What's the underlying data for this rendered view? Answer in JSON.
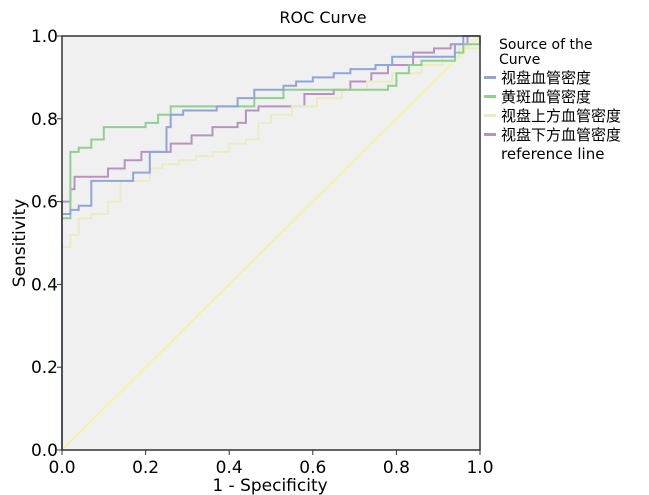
{
  "chart_data": {
    "type": "line",
    "title": "ROC Curve",
    "xlabel": "1 - Specificity",
    "ylabel": "Sensitivity",
    "xlim": [
      0,
      1
    ],
    "ylim": [
      0,
      1
    ],
    "xticks": [
      "0.0",
      "0.2",
      "0.4",
      "0.6",
      "0.8",
      "1.0"
    ],
    "yticks": [
      "0.0",
      "0.2",
      "0.4",
      "0.6",
      "0.8",
      "1.0"
    ],
    "grid": false,
    "background_color": "#f0f0f0",
    "legend": {
      "title": "Source of the Curve",
      "placement": "right"
    },
    "series": [
      {
        "name": "视盘血管密度",
        "color": "#8fa6d6",
        "points": [
          [
            0,
            0
          ],
          [
            0,
            0.57
          ],
          [
            0.02,
            0.57
          ],
          [
            0.02,
            0.58
          ],
          [
            0.04,
            0.58
          ],
          [
            0.04,
            0.59
          ],
          [
            0.07,
            0.59
          ],
          [
            0.07,
            0.65
          ],
          [
            0.17,
            0.65
          ],
          [
            0.17,
            0.67
          ],
          [
            0.21,
            0.67
          ],
          [
            0.21,
            0.72
          ],
          [
            0.25,
            0.72
          ],
          [
            0.25,
            0.78
          ],
          [
            0.26,
            0.78
          ],
          [
            0.26,
            0.81
          ],
          [
            0.29,
            0.81
          ],
          [
            0.29,
            0.82
          ],
          [
            0.37,
            0.82
          ],
          [
            0.37,
            0.83
          ],
          [
            0.42,
            0.83
          ],
          [
            0.42,
            0.85
          ],
          [
            0.46,
            0.85
          ],
          [
            0.46,
            0.87
          ],
          [
            0.53,
            0.87
          ],
          [
            0.53,
            0.88
          ],
          [
            0.56,
            0.88
          ],
          [
            0.56,
            0.89
          ],
          [
            0.6,
            0.89
          ],
          [
            0.6,
            0.9
          ],
          [
            0.65,
            0.9
          ],
          [
            0.65,
            0.91
          ],
          [
            0.69,
            0.91
          ],
          [
            0.69,
            0.92
          ],
          [
            0.75,
            0.92
          ],
          [
            0.75,
            0.93
          ],
          [
            0.79,
            0.93
          ],
          [
            0.79,
            0.95
          ],
          [
            0.94,
            0.95
          ],
          [
            0.94,
            0.98
          ],
          [
            0.96,
            0.98
          ],
          [
            0.96,
            1.0
          ],
          [
            1,
            1
          ]
        ]
      },
      {
        "name": "黄斑血管密度",
        "color": "#8fd08f",
        "points": [
          [
            0,
            0
          ],
          [
            0,
            0.56
          ],
          [
            0.02,
            0.56
          ],
          [
            0.02,
            0.72
          ],
          [
            0.04,
            0.72
          ],
          [
            0.04,
            0.73
          ],
          [
            0.07,
            0.73
          ],
          [
            0.07,
            0.75
          ],
          [
            0.1,
            0.75
          ],
          [
            0.1,
            0.78
          ],
          [
            0.2,
            0.78
          ],
          [
            0.2,
            0.79
          ],
          [
            0.23,
            0.79
          ],
          [
            0.23,
            0.81
          ],
          [
            0.26,
            0.81
          ],
          [
            0.26,
            0.83
          ],
          [
            0.46,
            0.83
          ],
          [
            0.46,
            0.85
          ],
          [
            0.53,
            0.85
          ],
          [
            0.53,
            0.87
          ],
          [
            0.78,
            0.87
          ],
          [
            0.78,
            0.88
          ],
          [
            0.8,
            0.88
          ],
          [
            0.8,
            0.91
          ],
          [
            0.83,
            0.91
          ],
          [
            0.83,
            0.93
          ],
          [
            0.86,
            0.93
          ],
          [
            0.86,
            0.94
          ],
          [
            0.94,
            0.94
          ],
          [
            0.94,
            0.96
          ],
          [
            0.96,
            0.96
          ],
          [
            0.96,
            0.98
          ],
          [
            1,
            0.98
          ],
          [
            1,
            1
          ]
        ]
      },
      {
        "name": "视盘上方血管密度",
        "color": "#ecebc4",
        "points": [
          [
            0,
            0
          ],
          [
            0,
            0.49
          ],
          [
            0.02,
            0.49
          ],
          [
            0.02,
            0.52
          ],
          [
            0.04,
            0.52
          ],
          [
            0.04,
            0.56
          ],
          [
            0.07,
            0.56
          ],
          [
            0.07,
            0.57
          ],
          [
            0.11,
            0.57
          ],
          [
            0.11,
            0.6
          ],
          [
            0.14,
            0.6
          ],
          [
            0.14,
            0.65
          ],
          [
            0.21,
            0.65
          ],
          [
            0.21,
            0.68
          ],
          [
            0.24,
            0.68
          ],
          [
            0.24,
            0.69
          ],
          [
            0.28,
            0.69
          ],
          [
            0.28,
            0.7
          ],
          [
            0.32,
            0.7
          ],
          [
            0.32,
            0.71
          ],
          [
            0.36,
            0.71
          ],
          [
            0.36,
            0.72
          ],
          [
            0.4,
            0.72
          ],
          [
            0.4,
            0.74
          ],
          [
            0.44,
            0.74
          ],
          [
            0.44,
            0.75
          ],
          [
            0.47,
            0.75
          ],
          [
            0.47,
            0.79
          ],
          [
            0.5,
            0.79
          ],
          [
            0.5,
            0.81
          ],
          [
            0.55,
            0.81
          ],
          [
            0.55,
            0.83
          ],
          [
            0.61,
            0.83
          ],
          [
            0.61,
            0.85
          ],
          [
            0.67,
            0.85
          ],
          [
            0.67,
            0.87
          ],
          [
            0.73,
            0.87
          ],
          [
            0.73,
            0.89
          ],
          [
            0.79,
            0.89
          ],
          [
            0.79,
            0.91
          ],
          [
            0.86,
            0.91
          ],
          [
            0.86,
            0.93
          ],
          [
            0.91,
            0.93
          ],
          [
            0.91,
            0.95
          ],
          [
            0.95,
            0.95
          ],
          [
            0.95,
            0.97
          ],
          [
            1,
            0.97
          ],
          [
            1,
            1
          ]
        ]
      },
      {
        "name": "视盘下方血管密度",
        "color": "#b993c0",
        "points": [
          [
            0,
            0
          ],
          [
            0,
            0.6
          ],
          [
            0.02,
            0.6
          ],
          [
            0.02,
            0.63
          ],
          [
            0.03,
            0.63
          ],
          [
            0.03,
            0.66
          ],
          [
            0.11,
            0.66
          ],
          [
            0.11,
            0.68
          ],
          [
            0.15,
            0.68
          ],
          [
            0.15,
            0.7
          ],
          [
            0.19,
            0.7
          ],
          [
            0.19,
            0.72
          ],
          [
            0.26,
            0.72
          ],
          [
            0.26,
            0.74
          ],
          [
            0.31,
            0.74
          ],
          [
            0.31,
            0.76
          ],
          [
            0.36,
            0.76
          ],
          [
            0.36,
            0.78
          ],
          [
            0.42,
            0.78
          ],
          [
            0.42,
            0.79
          ],
          [
            0.44,
            0.79
          ],
          [
            0.44,
            0.82
          ],
          [
            0.47,
            0.82
          ],
          [
            0.47,
            0.83
          ],
          [
            0.58,
            0.83
          ],
          [
            0.58,
            0.86
          ],
          [
            0.65,
            0.86
          ],
          [
            0.65,
            0.87
          ],
          [
            0.69,
            0.87
          ],
          [
            0.69,
            0.89
          ],
          [
            0.74,
            0.89
          ],
          [
            0.74,
            0.91
          ],
          [
            0.78,
            0.91
          ],
          [
            0.78,
            0.93
          ],
          [
            0.84,
            0.93
          ],
          [
            0.84,
            0.96
          ],
          [
            0.89,
            0.96
          ],
          [
            0.89,
            0.97
          ],
          [
            0.93,
            0.97
          ],
          [
            0.93,
            0.98
          ],
          [
            0.97,
            0.98
          ],
          [
            0.97,
            1.0
          ],
          [
            1,
            1
          ]
        ]
      },
      {
        "name": "reference line",
        "color": "#f3f3a8",
        "points": [
          [
            0,
            0
          ],
          [
            1,
            1
          ]
        ]
      }
    ]
  }
}
